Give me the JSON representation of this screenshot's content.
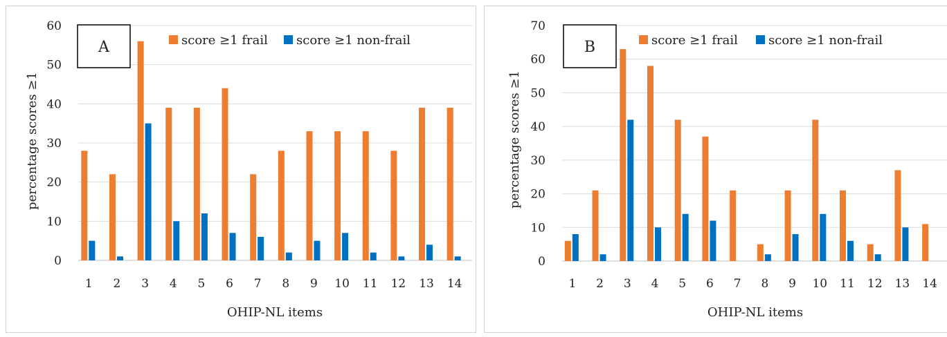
{
  "colors": {
    "frail": "#ED7D31",
    "nonfrail": "#0070C0",
    "grid": "#d9d9d9"
  },
  "chart_data": [
    {
      "type": "bar",
      "panel_label": "A",
      "xlabel": "OHIP-NL items",
      "ylabel": "percentage scores ≥1",
      "ylim": [
        0,
        60
      ],
      "yticks": [
        0,
        10,
        20,
        30,
        40,
        50,
        60
      ],
      "grid": true,
      "legend_position": "top",
      "categories": [
        "1",
        "2",
        "3",
        "4",
        "5",
        "6",
        "7",
        "8",
        "9",
        "10",
        "11",
        "12",
        "13",
        "14"
      ],
      "series": [
        {
          "name": "score ≥1 frail",
          "values": [
            28,
            22,
            56,
            39,
            39,
            44,
            22,
            28,
            33,
            33,
            33,
            28,
            39,
            39
          ]
        },
        {
          "name": "score ≥1 non-frail",
          "values": [
            5,
            1,
            35,
            10,
            12,
            7,
            6,
            2,
            5,
            7,
            2,
            1,
            4,
            1
          ]
        }
      ]
    },
    {
      "type": "bar",
      "panel_label": "B",
      "xlabel": "OHIP-NL items",
      "ylabel": "percentage scores ≥1",
      "ylim": [
        0,
        70
      ],
      "yticks": [
        0,
        10,
        20,
        30,
        40,
        50,
        60,
        70
      ],
      "grid": true,
      "legend_position": "top",
      "categories": [
        "1",
        "2",
        "3",
        "4",
        "5",
        "6",
        "7",
        "8",
        "9",
        "10",
        "11",
        "12",
        "13",
        "14"
      ],
      "series": [
        {
          "name": "score ≥1 frail",
          "values": [
            6,
            21,
            63,
            58,
            42,
            37,
            21,
            5,
            21,
            42,
            21,
            5,
            27,
            11
          ]
        },
        {
          "name": "score ≥1 non-frail",
          "values": [
            8,
            2,
            42,
            10,
            14,
            12,
            0,
            2,
            8,
            14,
            6,
            2,
            10,
            0
          ]
        }
      ]
    }
  ]
}
